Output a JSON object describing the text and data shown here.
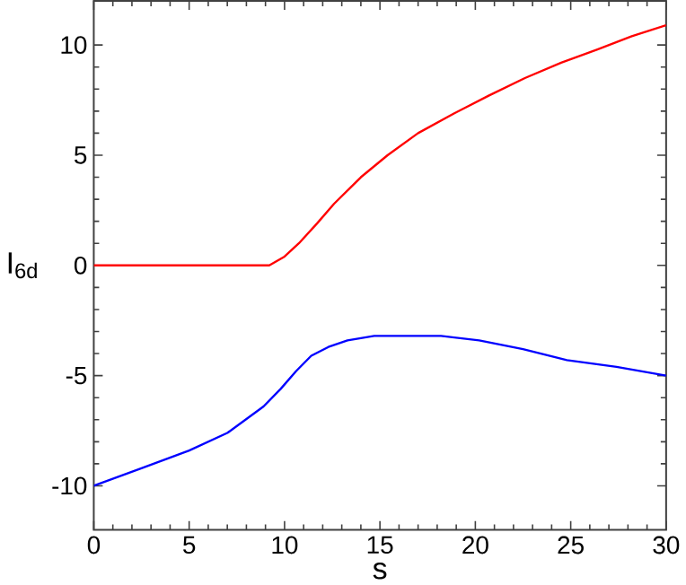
{
  "chart_data": {
    "type": "line",
    "xlabel": "s",
    "ylabel": "I$_{6d}$",
    "xlim": [
      0,
      30
    ],
    "ylim": [
      -12,
      12
    ],
    "xticks": [
      0,
      5,
      10,
      15,
      20,
      25,
      30
    ],
    "yticks": [
      -10,
      -5,
      0,
      5,
      10
    ],
    "marker": "none",
    "line_style": "solid",
    "series": [
      {
        "color": "#ff0000",
        "x": [
          0,
          4,
          9.2,
          10,
          10.75,
          11.7,
          12.6,
          14,
          15.4,
          17,
          18.9,
          20.7,
          22.6,
          24.5,
          26.4,
          28.2,
          30
        ],
        "values": [
          0,
          0,
          0,
          0.4,
          1,
          1.9,
          2.8,
          4,
          5,
          6,
          6.9,
          7.7,
          8.5,
          9.2,
          9.8,
          10.4,
          10.9
        ]
      },
      {
        "color": "#0000ff",
        "x": [
          0,
          2.5,
          5,
          7,
          8.9,
          9.8,
          10.6,
          11.4,
          12.3,
          13.3,
          14.7,
          16.2,
          18.2,
          20.2,
          22.5,
          24.8,
          27.4,
          30
        ],
        "values": [
          -10,
          -9.2,
          -8.4,
          -7.6,
          -6.4,
          -5.6,
          -4.8,
          -4.1,
          -3.7,
          -3.4,
          -3.2,
          -3.2,
          -3.2,
          -3.4,
          -3.8,
          -4.3,
          -4.6,
          -5
        ]
      }
    ]
  }
}
